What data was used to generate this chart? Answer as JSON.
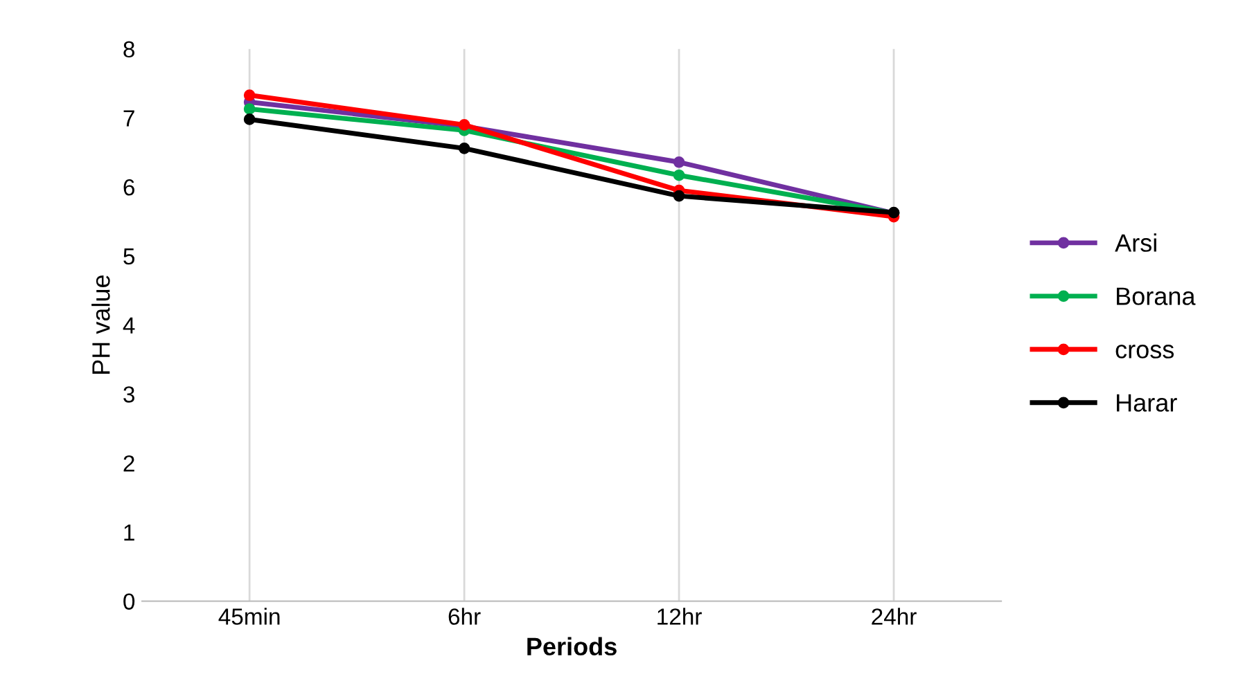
{
  "chart_data": {
    "type": "line",
    "xlabel": "Periods",
    "ylabel": "PH value",
    "categories": [
      "45min",
      "6hr",
      "12hr",
      "24hr"
    ],
    "series": [
      {
        "name": "Arsi",
        "color": "#7030a0",
        "values": [
          7.23,
          6.88,
          6.36,
          5.62
        ]
      },
      {
        "name": "Borana",
        "color": "#00b050",
        "values": [
          7.13,
          6.82,
          6.17,
          5.62
        ]
      },
      {
        "name": "cross",
        "color": "#ff0000",
        "values": [
          7.33,
          6.9,
          5.95,
          5.57
        ]
      },
      {
        "name": "Harar",
        "color": "#000000",
        "values": [
          6.98,
          6.56,
          5.87,
          5.63
        ]
      }
    ],
    "ylim": [
      0,
      8
    ],
    "yticks": [
      0,
      1,
      2,
      3,
      4,
      5,
      6,
      7,
      8
    ],
    "grid": "x",
    "legend": "right",
    "marker": "circle",
    "line_style": "solid"
  }
}
